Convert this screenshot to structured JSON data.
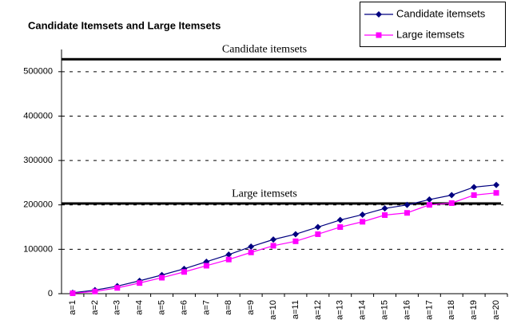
{
  "chart_data": {
    "type": "line",
    "title": "Candidate Itemsets and Large Itemsets",
    "categories": [
      "a=1",
      "a=2",
      "a=3",
      "a=4",
      "a=5",
      "a=6",
      "a=7",
      "a=8",
      "a=9",
      "a=10",
      "a=11",
      "a=12",
      "a=13",
      "a=14",
      "a=15",
      "a=16",
      "a=17",
      "a=18",
      "a=19",
      "a=20"
    ],
    "series": [
      {
        "name": "Candidate itemsets",
        "color": "#000080",
        "marker": "diamond",
        "values": [
          2000,
          8000,
          17000,
          29000,
          42000,
          56000,
          72000,
          88000,
          106000,
          122000,
          134000,
          150000,
          166000,
          178000,
          192000,
          200000,
          212000,
          222000,
          240000,
          245000
        ]
      },
      {
        "name": "Large itemsets",
        "color": "#ff00ff",
        "marker": "square",
        "values": [
          1000,
          5000,
          13000,
          24000,
          36000,
          49000,
          63000,
          77000,
          93000,
          108000,
          118000,
          134000,
          150000,
          162000,
          177000,
          182000,
          200000,
          204000,
          222000,
          227000
        ]
      }
    ],
    "reference_lines": [
      {
        "label": "Candidate itemsets",
        "value": 528000
      },
      {
        "label": "Large itemsets",
        "value": 203000
      }
    ],
    "ylim": [
      0,
      550000
    ],
    "yticks": [
      0,
      100000,
      200000,
      300000,
      400000,
      500000
    ],
    "grid": true,
    "legend": "top-right"
  }
}
